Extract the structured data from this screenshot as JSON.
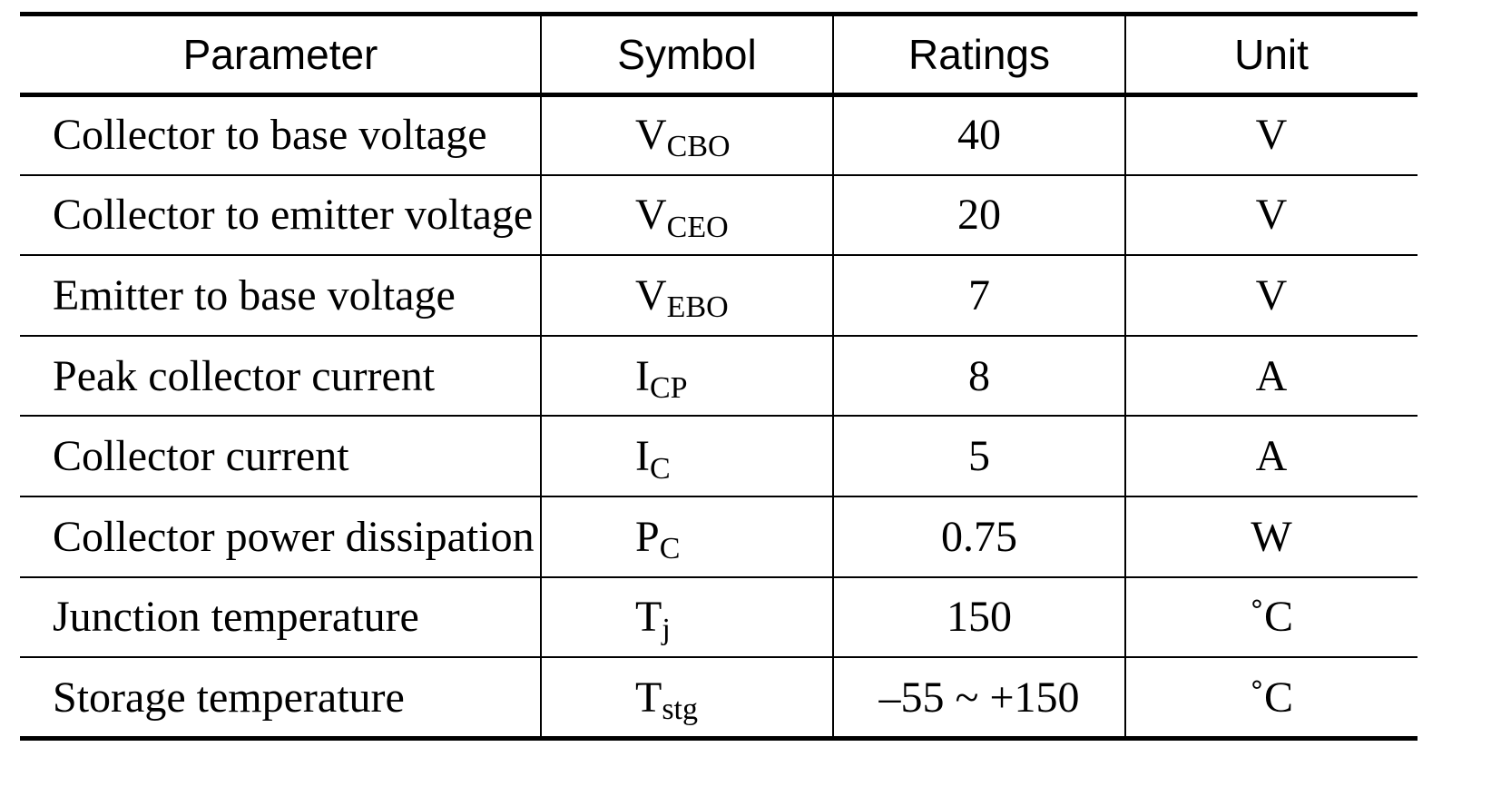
{
  "table": {
    "headers": [
      "Parameter",
      "Symbol",
      "Ratings",
      "Unit"
    ],
    "rows": [
      {
        "parameter": "Collector to base voltage",
        "symbol": {
          "base": "V",
          "sub": "CBO"
        },
        "rating": 40,
        "unit": "V"
      },
      {
        "parameter": "Collector to emitter voltage",
        "symbol": {
          "base": "V",
          "sub": "CEO"
        },
        "rating": 20,
        "unit": "V"
      },
      {
        "parameter": "Emitter to base voltage",
        "symbol": {
          "base": "V",
          "sub": "EBO"
        },
        "rating": 7,
        "unit": "V"
      },
      {
        "parameter": "Peak collector current",
        "symbol": {
          "base": "I",
          "sub": "CP"
        },
        "rating": 8,
        "unit": "A"
      },
      {
        "parameter": "Collector current",
        "symbol": {
          "base": "I",
          "sub": "C"
        },
        "rating": 5,
        "unit": "A"
      },
      {
        "parameter": "Collector power dissipation",
        "symbol": {
          "base": "P",
          "sub": "C"
        },
        "rating": 0.75,
        "unit": "W"
      },
      {
        "parameter": "Junction temperature",
        "symbol": {
          "base": "T",
          "sub": "j"
        },
        "rating": 150,
        "unit": "˚C"
      },
      {
        "parameter": "Storage temperature",
        "symbol": {
          "base": "T",
          "sub": "stg"
        },
        "rating": "–55 ~ +150",
        "unit": "˚C"
      }
    ]
  }
}
